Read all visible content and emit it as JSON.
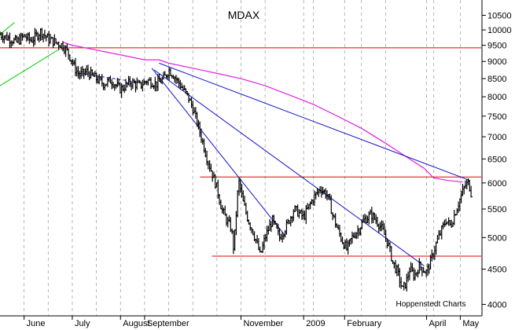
{
  "chart_data": {
    "type": "ohlc",
    "title": "MDAX",
    "credit": "Hoppenstedt Charts",
    "y_scale": "log",
    "ylim": [
      3850,
      11050
    ],
    "y_ticks": [
      4000,
      4500,
      5000,
      5500,
      6000,
      6500,
      7000,
      7500,
      8000,
      8500,
      9000,
      9500,
      10000,
      10500
    ],
    "x_ticks": [
      "June",
      "July",
      "August",
      "September",
      "November",
      "2009",
      "February",
      "April",
      "May"
    ],
    "grid": "vertical dashed",
    "colors": {
      "price": "#000000",
      "moving_average": "#e020e0",
      "horizontal_levels": "#e00000",
      "trendlines": "#1010d0",
      "early_trendline": "#00cc00",
      "grid": "#999999"
    },
    "price_path": [
      [
        0.0,
        9850
      ],
      [
        0.3,
        9750
      ],
      [
        0.7,
        9600
      ],
      [
        1.0,
        9800
      ],
      [
        1.3,
        9650
      ],
      [
        1.7,
        9950
      ],
      [
        2.0,
        9700
      ],
      [
        2.3,
        9600
      ],
      [
        2.6,
        9500
      ],
      [
        2.8,
        9300
      ],
      [
        3.0,
        9000
      ],
      [
        3.1,
        8800
      ],
      [
        3.3,
        8600
      ],
      [
        3.6,
        8700
      ],
      [
        4.0,
        8500
      ],
      [
        4.3,
        8350
      ],
      [
        4.6,
        8450
      ],
      [
        5.0,
        8200
      ],
      [
        5.4,
        8400
      ],
      [
        5.8,
        8300
      ],
      [
        6.1,
        8450
      ],
      [
        6.5,
        8350
      ],
      [
        6.8,
        8500
      ],
      [
        7.0,
        8750
      ],
      [
        7.2,
        8600
      ],
      [
        7.5,
        8300
      ],
      [
        7.8,
        8000
      ],
      [
        8.0,
        7700
      ],
      [
        8.2,
        7300
      ],
      [
        8.4,
        6900
      ],
      [
        8.6,
        6500
      ],
      [
        8.8,
        6200
      ],
      [
        9.0,
        5900
      ],
      [
        9.2,
        5500
      ],
      [
        9.4,
        5300
      ],
      [
        9.6,
        5150
      ],
      [
        9.7,
        4800
      ],
      [
        9.8,
        5400
      ],
      [
        9.9,
        6050
      ],
      [
        10.1,
        5600
      ],
      [
        10.3,
        5300
      ],
      [
        10.5,
        5100
      ],
      [
        10.7,
        4850
      ],
      [
        10.8,
        4700
      ],
      [
        11.0,
        5000
      ],
      [
        11.3,
        5300
      ],
      [
        11.6,
        5000
      ],
      [
        11.9,
        5200
      ],
      [
        12.2,
        5500
      ],
      [
        12.6,
        5350
      ],
      [
        13.0,
        5700
      ],
      [
        13.3,
        5900
      ],
      [
        13.6,
        5750
      ],
      [
        13.8,
        5400
      ],
      [
        14.0,
        5150
      ],
      [
        14.2,
        4950
      ],
      [
        14.4,
        4800
      ],
      [
        14.6,
        5000
      ],
      [
        14.9,
        5150
      ],
      [
        15.1,
        5300
      ],
      [
        15.4,
        5400
      ],
      [
        15.7,
        5250
      ],
      [
        15.9,
        5100
      ],
      [
        16.1,
        4900
      ],
      [
        16.3,
        4600
      ],
      [
        16.5,
        4450
      ],
      [
        16.7,
        4200
      ],
      [
        16.85,
        4300
      ],
      [
        17.0,
        4500
      ],
      [
        17.2,
        4400
      ],
      [
        17.4,
        4550
      ],
      [
        17.7,
        4450
      ],
      [
        17.9,
        4650
      ],
      [
        18.1,
        4900
      ],
      [
        18.3,
        5100
      ],
      [
        18.5,
        5300
      ],
      [
        18.7,
        5200
      ],
      [
        18.9,
        5450
      ],
      [
        19.1,
        5700
      ],
      [
        19.3,
        5950
      ],
      [
        19.45,
        6000
      ],
      [
        19.55,
        5800
      ]
    ],
    "moving_average": [
      [
        2.6,
        9600
      ],
      [
        3.0,
        9500
      ],
      [
        4.0,
        9350
      ],
      [
        5.0,
        9200
      ],
      [
        6.0,
        9050
      ],
      [
        6.6,
        9050
      ],
      [
        7.0,
        8950
      ],
      [
        8.0,
        8800
      ],
      [
        9.0,
        8650
      ],
      [
        10.0,
        8500
      ],
      [
        11.0,
        8300
      ],
      [
        12.0,
        8050
      ],
      [
        13.0,
        7800
      ],
      [
        14.0,
        7500
      ],
      [
        15.0,
        7200
      ],
      [
        16.0,
        6850
      ],
      [
        17.0,
        6500
      ],
      [
        17.6,
        6300
      ],
      [
        18.0,
        6100
      ],
      [
        18.6,
        6050
      ],
      [
        19.2,
        6020
      ]
    ],
    "horizontal_levels": [
      {
        "value": 9420,
        "from": 0.0,
        "to": 20.0
      },
      {
        "value": 6120,
        "from": 8.3,
        "to": 20.0
      },
      {
        "value": 4700,
        "from": 8.8,
        "to": 20.0
      }
    ],
    "trendlines": [
      {
        "points": [
          [
            6.6,
            8950
          ],
          [
            19.5,
            6050
          ]
        ]
      },
      {
        "points": [
          [
            6.3,
            8800
          ],
          [
            11.8,
            5050
          ]
        ]
      },
      {
        "points": [
          [
            6.4,
            8750
          ],
          [
            17.6,
            4550
          ]
        ]
      }
    ],
    "early_trendline": {
      "points": [
        [
          0.0,
          8300
        ],
        [
          2.4,
          9350
        ]
      ]
    },
    "dashed_segment": {
      "points": [
        [
          3.3,
          8650
        ],
        [
          5.7,
          8400
        ]
      ]
    }
  }
}
